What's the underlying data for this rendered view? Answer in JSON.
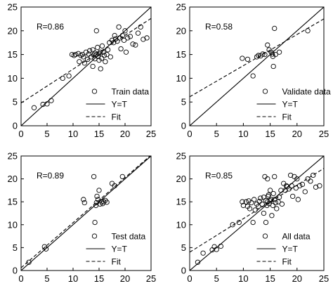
{
  "chart_data": [
    {
      "type": "scatter",
      "panel": "top-left",
      "annotation": "R=0.86",
      "xlim": [
        0,
        25
      ],
      "ylim": [
        0,
        25
      ],
      "xticks": [
        "0",
        "5",
        "10",
        "15",
        "20",
        "25"
      ],
      "yticks": [
        "0",
        "5",
        "10",
        "15",
        "20",
        "25"
      ],
      "legend": {
        "placement": "bottom-right",
        "entries": [
          "Train data",
          "Y=T",
          "Fit"
        ]
      },
      "series": [
        {
          "name": "Train data",
          "marker": "circle",
          "points": [
            [
              2.5,
              3.8
            ],
            [
              4.2,
              4.5
            ],
            [
              5,
              4.6
            ],
            [
              5.8,
              5.3
            ],
            [
              8,
              10
            ],
            [
              9.2,
              10.5
            ],
            [
              9.8,
              15
            ],
            [
              10.2,
              14.8
            ],
            [
              10.5,
              15
            ],
            [
              11,
              15.2
            ],
            [
              11.2,
              13.5
            ],
            [
              11.5,
              14.8
            ],
            [
              11.8,
              15
            ],
            [
              12,
              14.5
            ],
            [
              12.2,
              13.2
            ],
            [
              12.5,
              15.5
            ],
            [
              12.8,
              14
            ],
            [
              13,
              15.1
            ],
            [
              13.2,
              15.8
            ],
            [
              13.5,
              14.5
            ],
            [
              13.8,
              16
            ],
            [
              13.8,
              12.5
            ],
            [
              14,
              14.9
            ],
            [
              14.2,
              15.3
            ],
            [
              14.2,
              14.1
            ],
            [
              14.5,
              15
            ],
            [
              14.5,
              20
            ],
            [
              14.7,
              16.5
            ],
            [
              14.8,
              14.6
            ],
            [
              15,
              15.2
            ],
            [
              15,
              13.8
            ],
            [
              15.2,
              15.5
            ],
            [
              15.3,
              12
            ],
            [
              15.5,
              14.2
            ],
            [
              15.6,
              16.8
            ],
            [
              15.8,
              15.5
            ],
            [
              16,
              14.8
            ],
            [
              16.2,
              13.5
            ],
            [
              16.5,
              15
            ],
            [
              16.7,
              16
            ],
            [
              17,
              17.5
            ],
            [
              17.2,
              14.5
            ],
            [
              17.5,
              18
            ],
            [
              17.8,
              17.5
            ],
            [
              18,
              19
            ],
            [
              18.2,
              18.3
            ],
            [
              18.5,
              17.8
            ],
            [
              18.8,
              20.8
            ],
            [
              19,
              18.5
            ],
            [
              19.2,
              16.2
            ],
            [
              19.5,
              19
            ],
            [
              19.8,
              18
            ],
            [
              20,
              20
            ],
            [
              20.2,
              15.5
            ],
            [
              20.5,
              18.5
            ],
            [
              21,
              18.8
            ],
            [
              21.5,
              17.2
            ],
            [
              22,
              17
            ],
            [
              22.5,
              19.5
            ],
            [
              23,
              20.8
            ],
            [
              23.5,
              18.2
            ],
            [
              24.2,
              18.5
            ]
          ]
        },
        {
          "name": "Y=T",
          "style": "solid",
          "x": [
            0,
            25
          ],
          "y": [
            0,
            25
          ]
        },
        {
          "name": "Fit",
          "style": "dashed",
          "x": [
            0,
            25
          ],
          "y": [
            4.8,
            22.6
          ]
        }
      ]
    },
    {
      "type": "scatter",
      "panel": "top-right",
      "annotation": "R=0.58",
      "xlim": [
        0,
        25
      ],
      "ylim": [
        0,
        25
      ],
      "xticks": [
        "0",
        "5",
        "10",
        "15",
        "20",
        "25"
      ],
      "yticks": [
        "0",
        "5",
        "10",
        "15",
        "20",
        "25"
      ],
      "legend": {
        "placement": "bottom-right",
        "entries": [
          "Validate data",
          "Y=T",
          "Fit"
        ]
      },
      "series": [
        {
          "name": "Validate data",
          "marker": "circle",
          "points": [
            [
              9.8,
              14.2
            ],
            [
              10.8,
              14
            ],
            [
              11.8,
              10.5
            ],
            [
              12.5,
              14.5
            ],
            [
              12.8,
              14.8
            ],
            [
              13.2,
              14.7
            ],
            [
              13.6,
              15.1
            ],
            [
              14,
              15
            ],
            [
              14.5,
              17
            ],
            [
              14.8,
              16
            ],
            [
              15.2,
              15.5
            ],
            [
              15.4,
              15.1
            ],
            [
              15.5,
              14.6
            ],
            [
              15.6,
              12.5
            ],
            [
              15.8,
              20.5
            ],
            [
              16,
              15
            ],
            [
              16.7,
              15.5
            ],
            [
              22,
              20
            ]
          ]
        },
        {
          "name": "Y=T",
          "style": "solid",
          "x": [
            0,
            25
          ],
          "y": [
            0,
            25
          ]
        },
        {
          "name": "Fit",
          "style": "dashed",
          "x": [
            0,
            25
          ],
          "y": [
            6.1,
            22.5
          ]
        }
      ]
    },
    {
      "type": "scatter",
      "panel": "bottom-left",
      "annotation": "R=0.89",
      "xlim": [
        0,
        25
      ],
      "ylim": [
        0,
        25
      ],
      "xticks": [
        "0",
        "5",
        "10",
        "15",
        "20",
        "25"
      ],
      "yticks": [
        "0",
        "5",
        "10",
        "15",
        "20",
        "25"
      ],
      "legend": {
        "placement": "bottom-right",
        "entries": [
          "Test data",
          "Y=T",
          "Fit"
        ]
      },
      "series": [
        {
          "name": "Test data",
          "marker": "circle",
          "points": [
            [
              1.5,
              1.8
            ],
            [
              4.5,
              5.2
            ],
            [
              4.8,
              4.7
            ],
            [
              12,
              15.5
            ],
            [
              12.2,
              14.8
            ],
            [
              14,
              20.5
            ],
            [
              14.2,
              10.5
            ],
            [
              14.4,
              14.2
            ],
            [
              14.5,
              14.8
            ],
            [
              14.6,
              16.2
            ],
            [
              14.8,
              15.5
            ],
            [
              15,
              17.5
            ],
            [
              15.2,
              14.5
            ],
            [
              15.5,
              15
            ],
            [
              15.7,
              14.6
            ],
            [
              15.9,
              15
            ],
            [
              16.2,
              15.3
            ],
            [
              16.5,
              14.9
            ],
            [
              17.5,
              19
            ],
            [
              18,
              18.5
            ],
            [
              19.5,
              20.5
            ]
          ]
        },
        {
          "name": "Y=T",
          "style": "solid",
          "x": [
            0,
            25
          ],
          "y": [
            0,
            25
          ]
        },
        {
          "name": "Fit",
          "style": "dashed",
          "x": [
            0,
            25
          ],
          "y": [
            0.6,
            25.2
          ]
        }
      ]
    },
    {
      "type": "scatter",
      "panel": "bottom-right",
      "annotation": "R=0.85",
      "xlim": [
        0,
        25
      ],
      "ylim": [
        0,
        25
      ],
      "xticks": [
        "0",
        "5",
        "10",
        "15",
        "20",
        "25"
      ],
      "yticks": [
        "0",
        "5",
        "10",
        "15",
        "20",
        "25"
      ],
      "legend": {
        "placement": "bottom-right",
        "entries": [
          "All data",
          "Y=T",
          "Fit"
        ]
      },
      "series": [
        {
          "name": "All data",
          "marker": "circle",
          "points": [
            [
              1.5,
              1.8
            ],
            [
              2.5,
              3.8
            ],
            [
              4.2,
              4.5
            ],
            [
              4.6,
              5.2
            ],
            [
              5,
              4.6
            ],
            [
              5.8,
              5.3
            ],
            [
              8,
              10
            ],
            [
              9.2,
              10.5
            ],
            [
              9.8,
              15
            ],
            [
              10,
              14.2
            ],
            [
              10.5,
              15
            ],
            [
              10.8,
              14
            ],
            [
              11,
              15.2
            ],
            [
              11.2,
              13.5
            ],
            [
              11.5,
              14.8
            ],
            [
              11.8,
              10.5
            ],
            [
              12,
              15.5
            ],
            [
              12.2,
              13.2
            ],
            [
              12.5,
              14.5
            ],
            [
              12.8,
              14
            ],
            [
              13,
              15.1
            ],
            [
              13.2,
              15.8
            ],
            [
              13.5,
              14.5
            ],
            [
              13.8,
              16
            ],
            [
              13.8,
              12.5
            ],
            [
              14,
              20.5
            ],
            [
              14.2,
              10.5
            ],
            [
              14.2,
              15.3
            ],
            [
              14.4,
              14.2
            ],
            [
              14.5,
              15
            ],
            [
              14.5,
              20
            ],
            [
              14.6,
              16.2
            ],
            [
              14.7,
              16.5
            ],
            [
              14.8,
              14.6
            ],
            [
              15,
              15.2
            ],
            [
              15,
              17.5
            ],
            [
              15.2,
              15.5
            ],
            [
              15.3,
              12
            ],
            [
              15.5,
              14.2
            ],
            [
              15.6,
              16.8
            ],
            [
              15.8,
              20.5
            ],
            [
              15.8,
              15.5
            ],
            [
              16,
              14.8
            ],
            [
              16.2,
              13.5
            ],
            [
              16.5,
              15
            ],
            [
              16.7,
              16
            ],
            [
              17,
              17.5
            ],
            [
              17.2,
              14.5
            ],
            [
              17.5,
              19
            ],
            [
              17.8,
              17.5
            ],
            [
              18,
              18.5
            ],
            [
              18.2,
              18.3
            ],
            [
              18.5,
              17.8
            ],
            [
              18.8,
              20.8
            ],
            [
              19,
              18.5
            ],
            [
              19.2,
              16.2
            ],
            [
              19.5,
              20.5
            ],
            [
              19.8,
              18
            ],
            [
              20,
              20
            ],
            [
              20.2,
              15.5
            ],
            [
              20.5,
              18.5
            ],
            [
              21,
              18.8
            ],
            [
              21.5,
              17.2
            ],
            [
              22,
              20
            ],
            [
              22.5,
              19.5
            ],
            [
              23,
              20.8
            ],
            [
              23.5,
              18.2
            ],
            [
              24.2,
              18.5
            ]
          ]
        },
        {
          "name": "Y=T",
          "style": "solid",
          "x": [
            0,
            25
          ],
          "y": [
            0,
            25
          ]
        },
        {
          "name": "Fit",
          "style": "dashed",
          "x": [
            0,
            25
          ],
          "y": [
            4.0,
            22.3
          ]
        }
      ]
    }
  ]
}
